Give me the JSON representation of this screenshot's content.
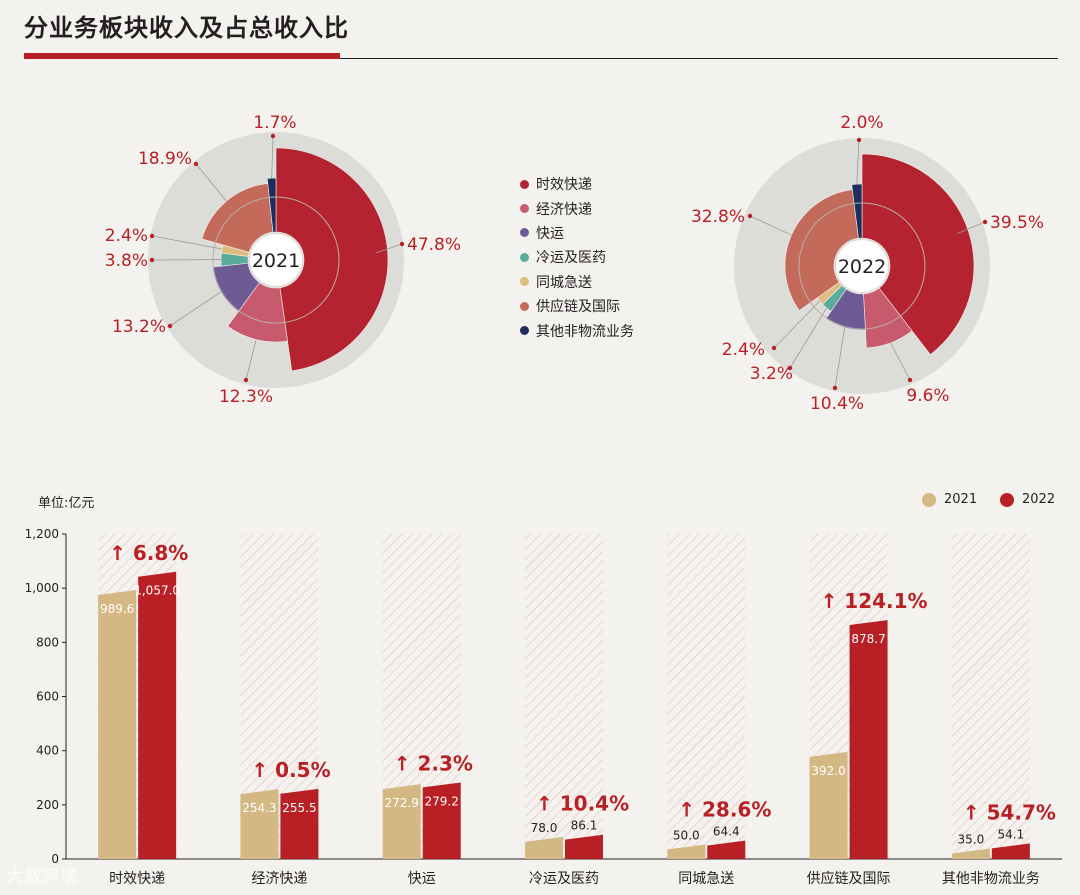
{
  "title": "分业务板块收入及占总收入比",
  "colors": {
    "accent": "#b82025",
    "y2021_bar": "#d4b883",
    "y2022_bar": "#b82025",
    "pct_text": "#b82025",
    "ring": "#dcdcd8"
  },
  "legend": {
    "items": [
      {
        "label": "时效快递",
        "color": "#b52330"
      },
      {
        "label": "经济快递",
        "color": "#c85a6e"
      },
      {
        "label": "快运",
        "color": "#6e5b96"
      },
      {
        "label": "冷运及医药",
        "color": "#5aab9c"
      },
      {
        "label": "同城急送",
        "color": "#dfbd80"
      },
      {
        "label": "供应链及国际",
        "color": "#c46a5b"
      },
      {
        "label": "其他非物流业务",
        "color": "#1d2d5c"
      }
    ]
  },
  "watermark": "大数跨境",
  "chart_data": [
    {
      "type": "pie",
      "center_label": "2021",
      "slices": [
        {
          "category": "时效快递",
          "value": 47.8,
          "label": "47.8%"
        },
        {
          "category": "经济快递",
          "value": 12.3,
          "label": "12.3%"
        },
        {
          "category": "快运",
          "value": 13.2,
          "label": "13.2%"
        },
        {
          "category": "冷运及医药",
          "value": 3.8,
          "label": "3.8%"
        },
        {
          "category": "同城急送",
          "value": 2.4,
          "label": "2.4%"
        },
        {
          "category": "供应链及国际",
          "value": 18.9,
          "label": "18.9%"
        },
        {
          "category": "其他非物流业务",
          "value": 1.7,
          "label": "1.7%"
        }
      ]
    },
    {
      "type": "pie",
      "center_label": "2022",
      "slices": [
        {
          "category": "时效快递",
          "value": 39.5,
          "label": "39.5%"
        },
        {
          "category": "经济快递",
          "value": 9.6,
          "label": "9.6%"
        },
        {
          "category": "快运",
          "value": 10.4,
          "label": "10.4%"
        },
        {
          "category": "冷运及医药",
          "value": 3.2,
          "label": "3.2%"
        },
        {
          "category": "同城急送",
          "value": 2.4,
          "label": "2.4%"
        },
        {
          "category": "供应链及国际",
          "value": 32.8,
          "label": "32.8%"
        },
        {
          "category": "其他非物流业务",
          "value": 2.0,
          "label": "2.0%"
        }
      ]
    },
    {
      "type": "bar",
      "unit_label": "单位:亿元",
      "categories": [
        "时效快递",
        "经济快递",
        "快运",
        "冷运及医药",
        "同城急送",
        "供应链及国际",
        "其他非物流业务"
      ],
      "series": [
        {
          "name": "2021",
          "values": [
            989.6,
            254.3,
            272.9,
            78.0,
            50.0,
            392.0,
            35.0
          ],
          "labels": [
            "989.6",
            "254.3",
            "272.9",
            "78.0",
            "50.0",
            "392.0",
            "35.0"
          ]
        },
        {
          "name": "2022",
          "values": [
            1057.0,
            255.5,
            279.2,
            86.1,
            64.4,
            878.7,
            54.1
          ],
          "labels": [
            "1,057.0",
            "255.5",
            "279.2",
            "86.1",
            "64.4",
            "878.7",
            "54.1"
          ]
        }
      ],
      "growth": [
        "6.8%",
        "0.5%",
        "2.3%",
        "10.4%",
        "28.6%",
        "124.1%",
        "54.7%"
      ],
      "ylim": [
        0,
        1200
      ],
      "yticks": [
        0,
        200,
        400,
        600,
        800,
        1000,
        1200
      ],
      "ytick_labels": [
        "0",
        "200",
        "400",
        "600",
        "800",
        "1,000",
        "1,200"
      ]
    }
  ]
}
